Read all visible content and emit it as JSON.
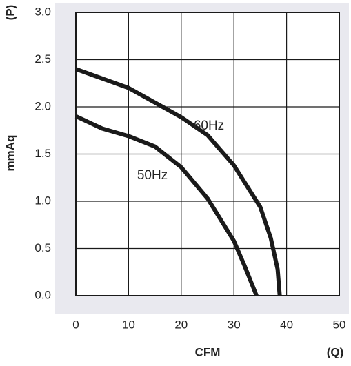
{
  "chart_data": {
    "type": "line",
    "x_label": "CFM",
    "x_unit": "(Q)",
    "y_label": "mmAq",
    "y_unit": "(P)",
    "xlim": [
      0,
      50
    ],
    "xticks": [
      0,
      10,
      20,
      30,
      40,
      50
    ],
    "ylim": [
      0,
      3
    ],
    "yticks": [
      {
        "value": 0,
        "label": "0.0"
      },
      {
        "value": 0.5,
        "label": "0.5"
      },
      {
        "value": 1,
        "label": "1.0"
      },
      {
        "value": 1.5,
        "label": "1.5"
      },
      {
        "value": 2,
        "label": "2.0"
      },
      {
        "value": 2.5,
        "label": "2.5"
      },
      {
        "value": 3,
        "label": "3.0"
      }
    ],
    "grid": true,
    "series": [
      {
        "name": "60Hz",
        "color": "#1a1a1a",
        "x": [
          0,
          10,
          20,
          25,
          30,
          35,
          37,
          38.3,
          38.7
        ],
        "values": [
          2.4,
          2.2,
          1.89,
          1.7,
          1.38,
          0.94,
          0.61,
          0.28,
          0
        ]
      },
      {
        "name": "50Hz",
        "color": "#1a1a1a",
        "x": [
          0,
          5,
          10,
          15,
          20,
          25,
          30,
          32,
          34.3
        ],
        "values": [
          1.9,
          1.77,
          1.69,
          1.58,
          1.36,
          1.03,
          0.58,
          0.32,
          0
        ]
      }
    ]
  }
}
